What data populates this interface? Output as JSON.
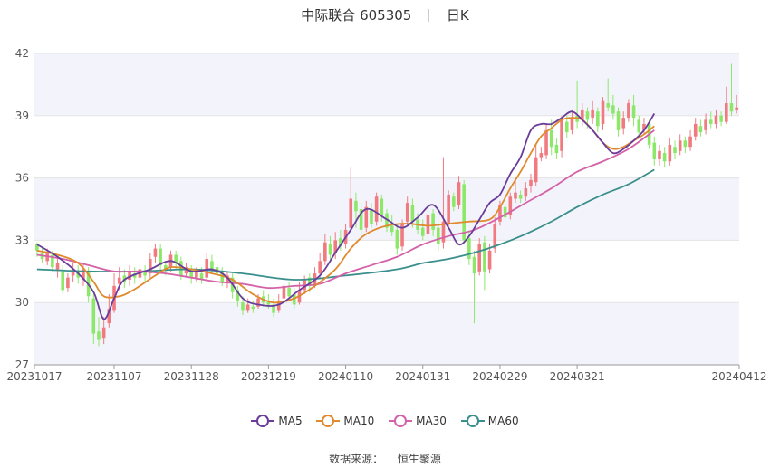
{
  "header": {
    "stock_name": "中际联合",
    "stock_code": "605305",
    "period": "日K"
  },
  "source": {
    "label": "数据来源：",
    "value": "恒生聚源"
  },
  "colors": {
    "up": "#f07a80",
    "down": "#8de86a",
    "ma5": "#6a3d9a",
    "ma10": "#e08a2e",
    "ma30": "#d462a8",
    "ma60": "#3a8f8c",
    "band": "#f3f4fb",
    "grid": "#e3e3e3"
  },
  "chart_data": {
    "type": "candlestick",
    "ylim": [
      27,
      42
    ],
    "yticks": [
      27,
      30,
      33,
      36,
      39,
      42
    ],
    "xtick_labels": [
      "20231017",
      "20231107",
      "20231128",
      "20231219",
      "20240110",
      "20240131",
      "20240229",
      "20240321",
      "20240412"
    ],
    "xtick_index": [
      0,
      15,
      30,
      45,
      60,
      75,
      90,
      105,
      120
    ],
    "grid": true,
    "legend_position": "bottom",
    "series_names": [
      "MA5",
      "MA10",
      "MA30",
      "MA60"
    ],
    "candles": [
      [
        32.8,
        32.5,
        32.9,
        32.2
      ],
      [
        32.4,
        32.1,
        32.7,
        31.9
      ],
      [
        32.0,
        32.4,
        32.6,
        31.8
      ],
      [
        32.3,
        31.7,
        32.5,
        31.5
      ],
      [
        31.6,
        31.9,
        32.1,
        31.2
      ],
      [
        31.5,
        30.6,
        31.8,
        30.4
      ],
      [
        30.7,
        31.2,
        31.4,
        30.5
      ],
      [
        31.3,
        31.6,
        31.9,
        31.0
      ],
      [
        31.5,
        31.2,
        31.8,
        30.9
      ],
      [
        31.1,
        31.6,
        31.9,
        30.8
      ],
      [
        31.5,
        30.3,
        31.7,
        30.0
      ],
      [
        30.2,
        28.5,
        30.4,
        28.0
      ],
      [
        28.6,
        28.2,
        29.3,
        27.9
      ],
      [
        28.3,
        28.8,
        29.3,
        28.0
      ],
      [
        29.0,
        29.7,
        30.4,
        28.8
      ],
      [
        29.6,
        30.8,
        31.4,
        29.5
      ],
      [
        30.9,
        31.2,
        31.7,
        30.6
      ],
      [
        31.3,
        31.0,
        31.6,
        30.7
      ],
      [
        31.1,
        31.5,
        31.8,
        30.8
      ],
      [
        31.4,
        31.2,
        31.7,
        30.9
      ],
      [
        31.2,
        31.6,
        31.9,
        31.0
      ],
      [
        31.5,
        31.3,
        31.8,
        31.0
      ],
      [
        31.4,
        32.1,
        32.4,
        31.2
      ],
      [
        32.2,
        32.6,
        32.8,
        31.9
      ],
      [
        32.6,
        31.8,
        32.8,
        31.6
      ],
      [
        31.8,
        31.6,
        32.0,
        31.3
      ],
      [
        31.7,
        32.3,
        32.5,
        31.5
      ],
      [
        32.3,
        31.9,
        32.5,
        31.6
      ],
      [
        32.0,
        31.3,
        32.2,
        31.1
      ],
      [
        31.4,
        31.7,
        31.9,
        31.2
      ],
      [
        31.6,
        31.2,
        31.8,
        30.9
      ],
      [
        31.2,
        31.5,
        31.7,
        31.0
      ],
      [
        31.4,
        31.1,
        31.7,
        30.9
      ],
      [
        31.2,
        32.1,
        32.4,
        31.0
      ],
      [
        32.0,
        31.6,
        32.3,
        31.4
      ],
      [
        31.7,
        31.4,
        31.9,
        31.2
      ],
      [
        31.5,
        31.0,
        31.7,
        30.8
      ],
      [
        31.0,
        31.3,
        31.5,
        30.7
      ],
      [
        31.2,
        30.5,
        31.4,
        30.2
      ],
      [
        30.6,
        30.1,
        30.8,
        29.8
      ],
      [
        30.0,
        29.6,
        30.3,
        29.4
      ],
      [
        29.6,
        29.9,
        30.2,
        29.5
      ],
      [
        29.8,
        29.7,
        30.1,
        29.5
      ],
      [
        29.8,
        30.2,
        30.4,
        29.7
      ],
      [
        30.3,
        30.0,
        30.6,
        29.8
      ],
      [
        30.1,
        29.9,
        30.4,
        29.7
      ],
      [
        29.9,
        29.5,
        30.2,
        29.3
      ],
      [
        29.6,
        30.1,
        30.4,
        29.5
      ],
      [
        30.2,
        30.8,
        31.0,
        30.0
      ],
      [
        30.7,
        30.3,
        31.0,
        30.1
      ],
      [
        30.4,
        29.9,
        30.7,
        29.7
      ],
      [
        30.0,
        30.6,
        31.0,
        29.9
      ],
      [
        30.6,
        31.1,
        31.3,
        30.4
      ],
      [
        31.2,
        30.8,
        31.4,
        30.5
      ],
      [
        30.9,
        31.4,
        31.7,
        30.7
      ],
      [
        31.4,
        32.0,
        32.4,
        31.2
      ],
      [
        32.0,
        32.9,
        33.3,
        31.8
      ],
      [
        32.8,
        32.3,
        33.2,
        32.0
      ],
      [
        32.4,
        33.0,
        33.4,
        32.1
      ],
      [
        33.1,
        32.7,
        33.5,
        32.5
      ],
      [
        32.8,
        33.5,
        33.8,
        32.6
      ],
      [
        33.6,
        35.0,
        36.5,
        33.4
      ],
      [
        34.9,
        34.4,
        35.3,
        33.6
      ],
      [
        34.5,
        33.5,
        34.8,
        33.2
      ],
      [
        33.6,
        34.6,
        34.9,
        33.4
      ],
      [
        34.5,
        33.8,
        34.8,
        33.6
      ],
      [
        33.9,
        35.1,
        35.3,
        33.7
      ],
      [
        35.0,
        34.2,
        35.2,
        33.9
      ],
      [
        34.3,
        33.6,
        34.5,
        33.4
      ],
      [
        33.7,
        33.4,
        34.2,
        33.2
      ],
      [
        33.5,
        32.6,
        33.8,
        32.3
      ],
      [
        32.7,
        33.8,
        34.0,
        32.5
      ],
      [
        33.9,
        34.8,
        35.1,
        33.7
      ],
      [
        34.7,
        33.9,
        35.0,
        33.6
      ],
      [
        34.0,
        33.5,
        34.3,
        33.3
      ],
      [
        33.6,
        33.2,
        34.0,
        33.0
      ],
      [
        33.3,
        34.2,
        34.6,
        33.1
      ],
      [
        34.3,
        33.5,
        34.5,
        33.2
      ],
      [
        33.6,
        32.8,
        33.8,
        32.5
      ],
      [
        32.9,
        33.9,
        37.0,
        32.6
      ],
      [
        33.8,
        35.2,
        35.4,
        33.6
      ],
      [
        35.1,
        34.6,
        35.3,
        34.4
      ],
      [
        34.7,
        35.8,
        36.1,
        34.5
      ],
      [
        35.7,
        33.0,
        35.9,
        32.8
      ],
      [
        33.1,
        32.1,
        33.4,
        31.8
      ],
      [
        32.2,
        31.4,
        32.5,
        29.0
      ],
      [
        31.5,
        32.8,
        33.1,
        31.3
      ],
      [
        32.9,
        31.5,
        33.2,
        30.6
      ],
      [
        31.6,
        32.5,
        32.8,
        31.4
      ],
      [
        32.6,
        33.8,
        34.1,
        32.4
      ],
      [
        33.9,
        34.7,
        34.9,
        33.7
      ],
      [
        34.6,
        34.1,
        34.9,
        33.9
      ],
      [
        34.2,
        35.1,
        35.3,
        34.0
      ],
      [
        35.0,
        35.3,
        36.0,
        34.8
      ],
      [
        35.2,
        35.0,
        35.4,
        34.8
      ],
      [
        35.1,
        35.5,
        35.8,
        34.9
      ],
      [
        35.6,
        35.9,
        36.2,
        35.3
      ],
      [
        35.8,
        37.0,
        37.6,
        35.6
      ],
      [
        37.0,
        37.2,
        37.5,
        36.8
      ],
      [
        37.1,
        38.3,
        38.6,
        36.9
      ],
      [
        38.3,
        37.5,
        38.8,
        37.1
      ],
      [
        37.6,
        37.2,
        37.9,
        36.9
      ],
      [
        37.3,
        38.8,
        39.0,
        37.0
      ],
      [
        38.7,
        38.2,
        39.0,
        37.9
      ],
      [
        38.3,
        38.9,
        39.3,
        38.1
      ],
      [
        39.0,
        38.7,
        40.7,
        38.4
      ],
      [
        38.8,
        39.3,
        39.6,
        38.5
      ],
      [
        39.2,
        38.8,
        39.4,
        38.4
      ],
      [
        38.9,
        39.3,
        39.7,
        38.6
      ],
      [
        39.2,
        38.5,
        39.4,
        38.2
      ],
      [
        38.6,
        39.7,
        39.9,
        38.3
      ],
      [
        39.6,
        39.4,
        40.8,
        39.2
      ],
      [
        39.5,
        39.1,
        40.0,
        38.8
      ],
      [
        39.2,
        38.3,
        39.4,
        38.0
      ],
      [
        38.4,
        38.9,
        39.2,
        38.1
      ],
      [
        38.9,
        39.6,
        39.8,
        38.7
      ],
      [
        39.5,
        38.9,
        40.0,
        38.5
      ],
      [
        38.8,
        38.2,
        39.0,
        37.9
      ],
      [
        38.3,
        38.6,
        38.9,
        38.1
      ],
      [
        38.6,
        37.6,
        38.8,
        37.4
      ],
      [
        37.7,
        36.9,
        38.0,
        36.6
      ],
      [
        36.9,
        37.3,
        37.6,
        36.6
      ],
      [
        37.2,
        36.8,
        37.5,
        36.5
      ],
      [
        36.8,
        37.6,
        37.9,
        36.6
      ],
      [
        37.5,
        37.2,
        37.8,
        36.9
      ],
      [
        37.3,
        37.8,
        38.1,
        37.1
      ],
      [
        37.8,
        37.5,
        38.0,
        37.2
      ],
      [
        37.5,
        38.0,
        38.3,
        37.3
      ],
      [
        38.0,
        38.6,
        38.9,
        37.8
      ],
      [
        38.5,
        38.2,
        38.8,
        38.0
      ],
      [
        38.3,
        38.8,
        39.1,
        38.1
      ],
      [
        38.8,
        38.6,
        39.2,
        38.4
      ],
      [
        38.6,
        39.0,
        39.3,
        38.4
      ],
      [
        39.0,
        38.7,
        39.2,
        38.5
      ],
      [
        38.7,
        39.6,
        40.4,
        38.6
      ],
      [
        39.6,
        39.2,
        41.5,
        39.0
      ],
      [
        39.3,
        39.4,
        40.0,
        39.1
      ]
    ],
    "ma5_anchors": [
      [
        0,
        32.8
      ],
      [
        4,
        32.2
      ],
      [
        8,
        31.4
      ],
      [
        11,
        30.5
      ],
      [
        13,
        29.2
      ],
      [
        15,
        30.2
      ],
      [
        17,
        31.1
      ],
      [
        22,
        31.6
      ],
      [
        26,
        32.0
      ],
      [
        30,
        31.5
      ],
      [
        34,
        31.6
      ],
      [
        37,
        31.2
      ],
      [
        40,
        30.2
      ],
      [
        43,
        29.9
      ],
      [
        47,
        29.9
      ],
      [
        51,
        30.6
      ],
      [
        55,
        31.3
      ],
      [
        58,
        32.4
      ],
      [
        61,
        33.5
      ],
      [
        64,
        34.5
      ],
      [
        68,
        34.0
      ],
      [
        71,
        33.6
      ],
      [
        74,
        34.1
      ],
      [
        77,
        34.7
      ],
      [
        80,
        33.6
      ],
      [
        82,
        32.8
      ],
      [
        84,
        33.2
      ],
      [
        86,
        34.0
      ],
      [
        88,
        34.8
      ],
      [
        90,
        35.2
      ],
      [
        92,
        36.2
      ],
      [
        94,
        37.0
      ],
      [
        96,
        38.3
      ],
      [
        98,
        38.6
      ],
      [
        100,
        38.6
      ],
      [
        102,
        38.9
      ],
      [
        104,
        39.2
      ],
      [
        106,
        38.8
      ],
      [
        108,
        38.3
      ],
      [
        110,
        37.7
      ],
      [
        112,
        37.2
      ],
      [
        114,
        37.4
      ],
      [
        116,
        37.8
      ],
      [
        118,
        38.3
      ],
      [
        120,
        39.1
      ]
    ],
    "ma10_anchors": [
      [
        0,
        32.5
      ],
      [
        4,
        32.3
      ],
      [
        8,
        31.9
      ],
      [
        11,
        31.0
      ],
      [
        13,
        30.3
      ],
      [
        16,
        30.3
      ],
      [
        18,
        30.5
      ],
      [
        20,
        30.8
      ],
      [
        23,
        31.3
      ],
      [
        26,
        31.7
      ],
      [
        30,
        31.6
      ],
      [
        34,
        31.4
      ],
      [
        38,
        31.1
      ],
      [
        42,
        30.4
      ],
      [
        46,
        30.0
      ],
      [
        50,
        30.2
      ],
      [
        54,
        30.8
      ],
      [
        58,
        31.6
      ],
      [
        61,
        32.6
      ],
      [
        64,
        33.3
      ],
      [
        68,
        33.7
      ],
      [
        72,
        33.8
      ],
      [
        76,
        33.7
      ],
      [
        80,
        33.8
      ],
      [
        84,
        33.9
      ],
      [
        88,
        34.0
      ],
      [
        90,
        34.6
      ],
      [
        92,
        35.5
      ],
      [
        94,
        36.3
      ],
      [
        96,
        37.2
      ],
      [
        98,
        38.0
      ],
      [
        100,
        38.4
      ],
      [
        102,
        38.8
      ],
      [
        104,
        38.9
      ],
      [
        106,
        38.8
      ],
      [
        108,
        38.3
      ],
      [
        110,
        37.7
      ],
      [
        112,
        37.4
      ],
      [
        114,
        37.5
      ],
      [
        116,
        37.8
      ],
      [
        118,
        38.1
      ],
      [
        120,
        38.5
      ]
    ],
    "ma30_anchors": [
      [
        0,
        32.3
      ],
      [
        5,
        32.1
      ],
      [
        10,
        31.8
      ],
      [
        15,
        31.5
      ],
      [
        20,
        31.5
      ],
      [
        25,
        31.4
      ],
      [
        30,
        31.2
      ],
      [
        35,
        31.0
      ],
      [
        40,
        30.9
      ],
      [
        45,
        30.7
      ],
      [
        50,
        30.8
      ],
      [
        55,
        30.9
      ],
      [
        60,
        31.4
      ],
      [
        65,
        31.8
      ],
      [
        70,
        32.2
      ],
      [
        75,
        32.8
      ],
      [
        80,
        33.2
      ],
      [
        85,
        33.5
      ],
      [
        90,
        34.1
      ],
      [
        95,
        34.8
      ],
      [
        100,
        35.5
      ],
      [
        105,
        36.3
      ],
      [
        110,
        36.8
      ],
      [
        115,
        37.4
      ],
      [
        120,
        38.3
      ]
    ],
    "ma60_anchors": [
      [
        0,
        31.6
      ],
      [
        10,
        31.5
      ],
      [
        20,
        31.5
      ],
      [
        30,
        31.6
      ],
      [
        40,
        31.4
      ],
      [
        50,
        31.1
      ],
      [
        60,
        31.3
      ],
      [
        70,
        31.6
      ],
      [
        75,
        31.9
      ],
      [
        80,
        32.1
      ],
      [
        85,
        32.4
      ],
      [
        90,
        32.8
      ],
      [
        95,
        33.3
      ],
      [
        100,
        33.9
      ],
      [
        105,
        34.6
      ],
      [
        110,
        35.2
      ],
      [
        115,
        35.7
      ],
      [
        120,
        36.4
      ]
    ]
  }
}
